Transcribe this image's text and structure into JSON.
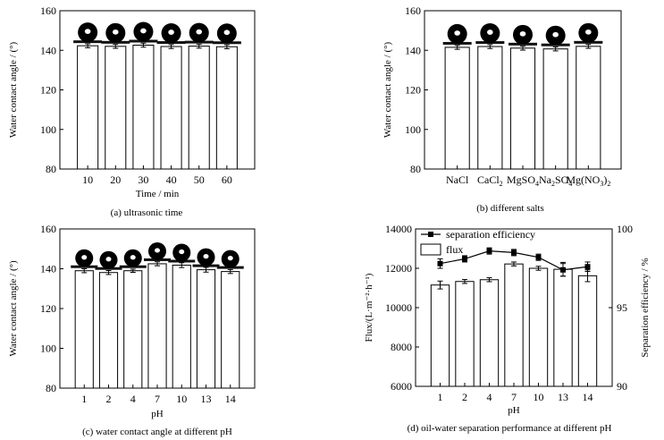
{
  "chart_data": [
    {
      "id": "a",
      "type": "bar",
      "caption": "(a) ultrasonic time",
      "xlabel": "Time / min",
      "ylabel": "Water contact angle / (°)",
      "categories": [
        "10",
        "20",
        "30",
        "40",
        "50",
        "60"
      ],
      "values": [
        142.3,
        142.0,
        142.6,
        141.9,
        142.1,
        141.8
      ],
      "errors": [
        1.0,
        1.0,
        1.0,
        1.0,
        1.0,
        1.0
      ],
      "ylim": [
        80,
        160
      ],
      "yticks": [
        "80",
        "100",
        "120",
        "140",
        "160"
      ],
      "grid": false
    },
    {
      "id": "b",
      "type": "bar",
      "caption": "(b)  different salts",
      "xlabel": "",
      "ylabel": "Water contact angle / (°)",
      "categories": [
        {
          "base": "NaCl",
          "sub": ""
        },
        {
          "base": "CaCl",
          "sub": "2"
        },
        {
          "base": "MgSO",
          "sub": "4"
        },
        {
          "base": "Na",
          "sub": "2",
          "base2": "SO",
          "sub2": "4"
        },
        {
          "base": "Mg(NO",
          "sub": "3",
          "base2": ")",
          "sub2": "2"
        }
      ],
      "values": [
        141.5,
        141.9,
        141.1,
        140.7,
        142.0
      ],
      "errors": [
        1.0,
        1.0,
        1.0,
        1.0,
        1.0
      ],
      "ylim": [
        80,
        160
      ],
      "yticks": [
        "80",
        "100",
        "120",
        "140",
        "160"
      ],
      "grid": false
    },
    {
      "id": "c",
      "type": "bar",
      "caption": "(c)  water contact angle at different pH",
      "xlabel": "pH",
      "ylabel": "Water contact angle / (°)",
      "categories": [
        "1",
        "2",
        "4",
        "7",
        "10",
        "13",
        "14"
      ],
      "values": [
        139.0,
        138.1,
        139.0,
        142.5,
        141.8,
        139.5,
        138.6
      ],
      "errors": [
        1.0,
        1.0,
        0.8,
        1.0,
        1.2,
        1.2,
        1.0
      ],
      "ylim": [
        80,
        160
      ],
      "yticks": [
        "80",
        "100",
        "120",
        "140",
        "160"
      ],
      "grid": false
    },
    {
      "id": "d",
      "type": "bar+line",
      "caption": "(d)  oil-water separation performance at different pH",
      "xlabel": "pH",
      "ylabel": "Flux/(L·m⁻²·h⁻¹)",
      "y2label": "Separation efficiency / %",
      "categories": [
        "1",
        "2",
        "4",
        "7",
        "10",
        "13",
        "14"
      ],
      "ylim": [
        6000,
        14000
      ],
      "yticks": [
        "6000",
        "8000",
        "10000",
        "12000",
        "14000"
      ],
      "y2lim": [
        90,
        100
      ],
      "y2ticks": [
        "90",
        "95",
        "100"
      ],
      "legend_position": "top-left",
      "series": [
        {
          "name": "flux",
          "kind": "bar",
          "values": [
            11150,
            11330,
            11420,
            12220,
            12000,
            11950,
            11620
          ],
          "errors": [
            200,
            100,
            100,
            100,
            100,
            350,
            300
          ]
        },
        {
          "name": "separation efficiency",
          "kind": "line",
          "values": [
            97.8,
            98.1,
            98.6,
            98.5,
            98.2,
            97.4,
            97.6
          ],
          "errors": [
            0.3,
            0.2,
            0.2,
            0.2,
            0.2,
            0.4,
            0.3
          ]
        }
      ]
    }
  ]
}
